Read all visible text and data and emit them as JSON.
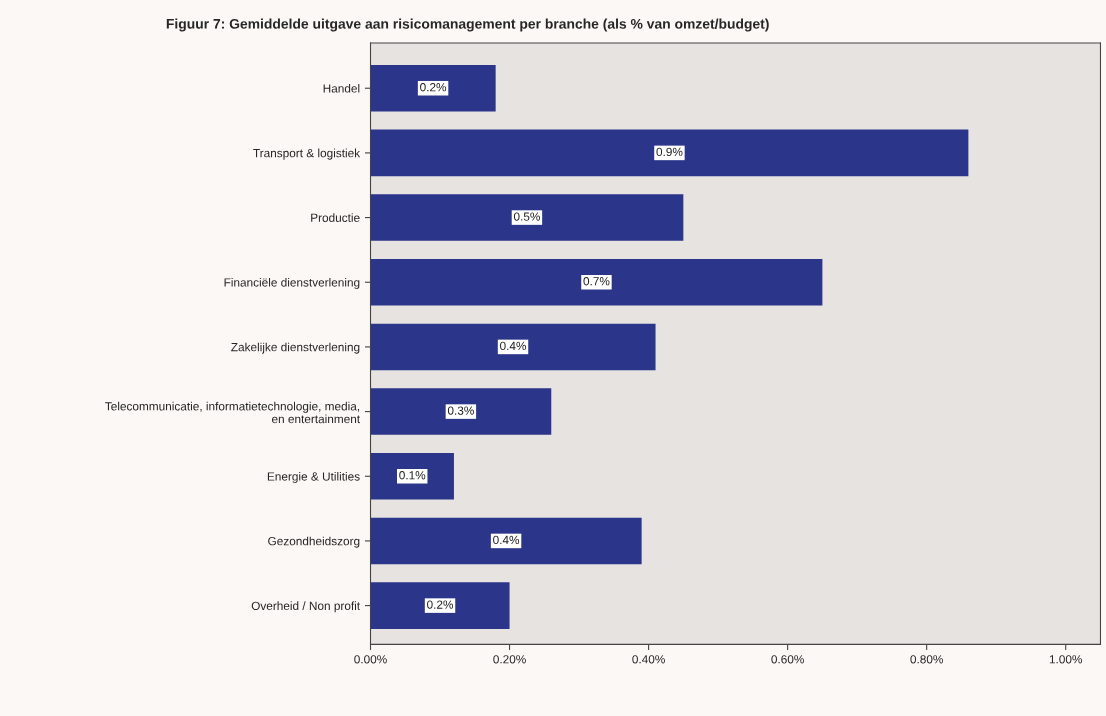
{
  "chart_data": {
    "type": "bar",
    "orientation": "horizontal",
    "title": "Figuur 7: Gemiddelde uitgave aan risicomanagement per branche (als % van omzet/budget)",
    "categories": [
      "Handel",
      "Transport & logistiek",
      "Productie",
      "Financiële dienstverlening",
      "Zakelijke dienstverlening",
      "Telecommunicatie, informatietechnologie, media,\nen entertainment",
      "Energie & Utilities",
      "Gezondheidszorg",
      "Overheid / Non profit"
    ],
    "values": [
      0.18,
      0.86,
      0.45,
      0.65,
      0.41,
      0.26,
      0.12,
      0.39,
      0.2
    ],
    "value_labels": [
      "0.2%",
      "0.9%",
      "0.5%",
      "0.7%",
      "0.4%",
      "0.3%",
      "0.1%",
      "0.4%",
      "0.2%"
    ],
    "color": "#2b3589",
    "xlim": [
      0,
      1.05
    ],
    "xticks": [
      {
        "value": 0,
        "label": "0.00%"
      },
      {
        "value": 0.2,
        "label": "0.20%"
      },
      {
        "value": 0.4,
        "label": "0.40%"
      },
      {
        "value": 0.6,
        "label": "0.60%"
      },
      {
        "value": 0.8,
        "label": "0.80%"
      },
      {
        "value": 1.0,
        "label": "1.00%"
      }
    ],
    "grid": false,
    "legend": false
  }
}
